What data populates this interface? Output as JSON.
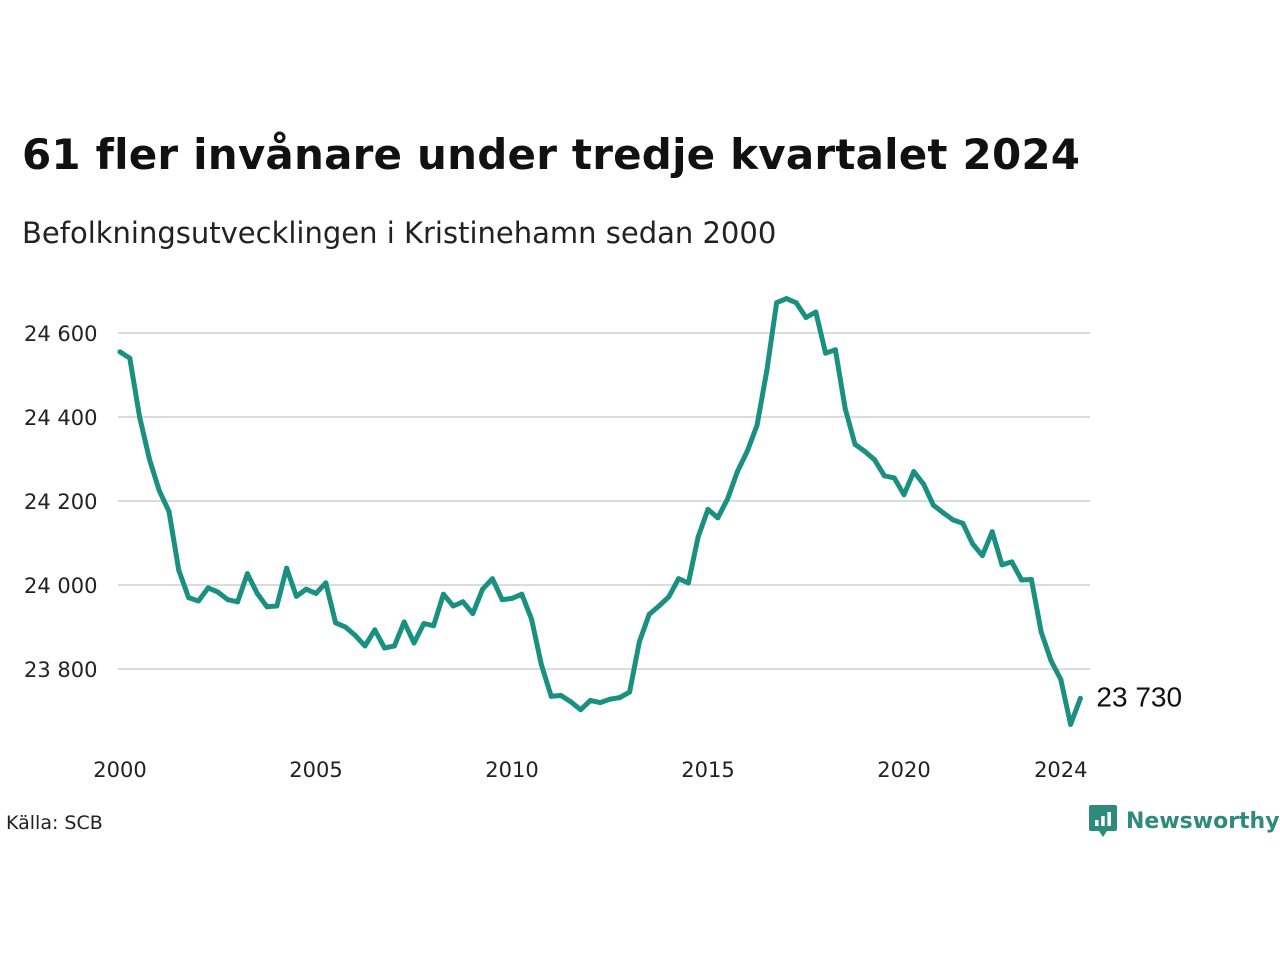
{
  "colors": {
    "line": "#1a9080",
    "grid": "#dcdcdc",
    "brand": "#2e8b7c",
    "text": "#111111"
  },
  "source_label": "Källa: SCB",
  "brand": {
    "name": "Newsworthy",
    "icon": "newsworthy-logo-icon"
  },
  "chart_data": {
    "type": "line",
    "title": "61 fler invånare under tredje kvartalet 2024",
    "subtitle": "Befolkningsutvecklingen i Kristinehamn sedan 2000",
    "xlabel": "",
    "ylabel": "",
    "xlim": [
      2000,
      2024.5
    ],
    "ylim": [
      23680,
      24720
    ],
    "y_ticks": [
      23800,
      24000,
      24200,
      24400,
      24600
    ],
    "y_tick_labels": [
      "23 800",
      "24 000",
      "24 200",
      "24 400",
      "24 600"
    ],
    "x_ticks": [
      2000,
      2005,
      2010,
      2015,
      2020,
      2024
    ],
    "x_tick_labels": [
      "2000",
      "2005",
      "2010",
      "2015",
      "2020",
      "2024"
    ],
    "grid": true,
    "legend": "none",
    "end_value_label": "23 730",
    "series": [
      {
        "x_start": 2000,
        "step": 0.25,
        "values": [
          24555,
          24540,
          24400,
          24300,
          24225,
          24175,
          24035,
          23970,
          23962,
          23993,
          23983,
          23965,
          23960,
          24027,
          23980,
          23948,
          23950,
          24040,
          23973,
          23990,
          23980,
          24005,
          23910,
          23900,
          23880,
          23855,
          23893,
          23850,
          23855,
          23912,
          23862,
          23908,
          23903,
          23978,
          23950,
          23960,
          23932,
          23990,
          24015,
          23965,
          23968,
          23978,
          23918,
          23810,
          23735,
          23737,
          23722,
          23703,
          23725,
          23720,
          23728,
          23732,
          23745,
          23865,
          23930,
          23950,
          23972,
          24015,
          24005,
          24115,
          24180,
          24160,
          24205,
          24270,
          24318,
          24380,
          24510,
          24672,
          24682,
          24672,
          24637,
          24650,
          24552,
          24560,
          24420,
          24335,
          24318,
          24298,
          24260,
          24255,
          24215,
          24270,
          24240,
          24190,
          24172,
          24155,
          24147,
          24098,
          24070,
          24127,
          24048,
          24055,
          24012,
          24013,
          23888,
          23820,
          23775,
          23668,
          23730
        ]
      }
    ]
  }
}
